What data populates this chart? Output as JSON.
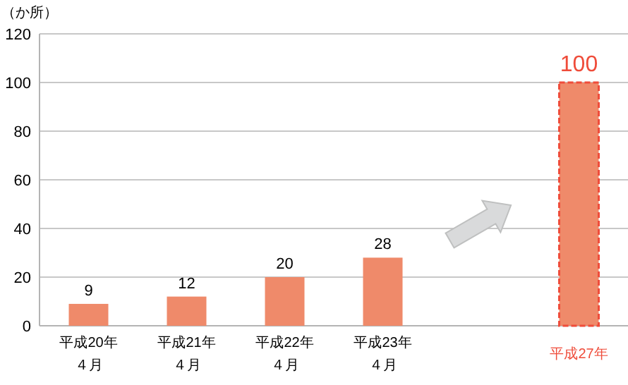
{
  "chart_data": {
    "type": "bar",
    "ylabel": "（か所）",
    "categories": [
      "平成20年４月",
      "平成21年４月",
      "平成22年４月",
      "平成23年４月",
      null,
      "平成27年"
    ],
    "series": [
      {
        "color": "#ef8a6a",
        "values": [
          9,
          12,
          20,
          28,
          null,
          null
        ]
      },
      {
        "color": "#ef8a6a",
        "line_style": "dashed",
        "values": [
          null,
          null,
          null,
          null,
          null,
          100
        ]
      }
    ],
    "ylim": [
      0,
      120
    ],
    "yticks": [
      0,
      20,
      40,
      60,
      80,
      100,
      120
    ],
    "grid": "y",
    "data_labels": true
  }
}
